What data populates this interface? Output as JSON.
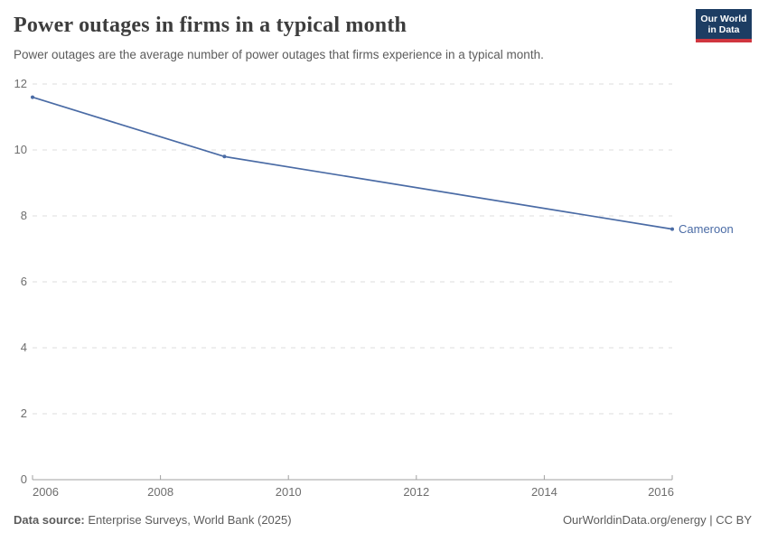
{
  "header": {
    "title": "Power outages in firms in a typical month",
    "subtitle": "Power outages are the average number of power outages that firms experience in a typical month.",
    "logo_line1": "Our World",
    "logo_line2": "in Data"
  },
  "chart_data": {
    "type": "line",
    "title": "Power outages in firms in a typical month",
    "xlabel": "",
    "ylabel": "",
    "xlim": [
      2006,
      2016
    ],
    "ylim": [
      0,
      12
    ],
    "x_ticks": [
      2006,
      2008,
      2010,
      2012,
      2014,
      2016
    ],
    "y_ticks": [
      0,
      2,
      4,
      6,
      8,
      10,
      12
    ],
    "grid": "horizontal-dashed",
    "legend_position": "end-of-line-label",
    "series": [
      {
        "name": "Cameroon",
        "x": [
          2006,
          2009,
          2016
        ],
        "values": [
          11.6,
          9.8,
          7.6
        ],
        "color": "#4A6BA5",
        "end_label": "Cameroon"
      }
    ]
  },
  "footer": {
    "datasource_label": "Data source: ",
    "datasource_value": "Enterprise Surveys, World Bank (2025)",
    "license": "OurWorldinData.org/energy | CC BY"
  },
  "colors": {
    "accent": "#4A6BA5",
    "grid": "#dcdcdc",
    "axis": "#a1a1a1",
    "tick_label": "#6e6e6e",
    "logo_bg": "#1d3d63",
    "logo_red": "#d0363f"
  }
}
